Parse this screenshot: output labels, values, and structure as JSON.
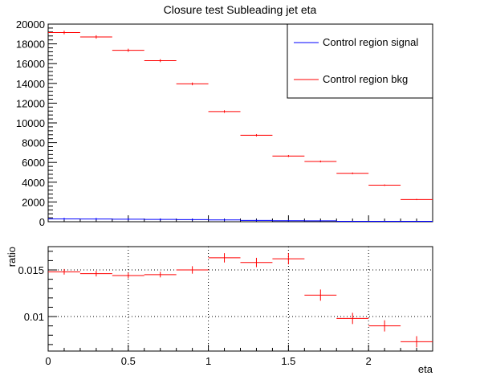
{
  "colors": {
    "signal": "#0000ff",
    "bkg": "#ff0000",
    "axis": "#000000"
  },
  "chart_data": [
    {
      "type": "scatter",
      "title": "Closure test Subleading jet eta",
      "xlim": [
        0,
        2.4
      ],
      "ylim": [
        0,
        20000
      ],
      "y_ticks": [
        0,
        2000,
        4000,
        6000,
        8000,
        10000,
        12000,
        14000,
        16000,
        18000,
        20000
      ],
      "y_tick_labels": [
        "0",
        "2000",
        "4000",
        "6000",
        "8000",
        "10000",
        "12000",
        "14000",
        "16000",
        "18000",
        "20000"
      ],
      "grid": false,
      "legend": {
        "position": "top-right",
        "entries": [
          "Control region signal",
          "Control region bkg"
        ]
      },
      "bin_width": 0.2,
      "series": [
        {
          "name": "Control region signal",
          "color": "#0000ff",
          "x": [
            0.1,
            0.3,
            0.5,
            0.7,
            0.9,
            1.1,
            1.3,
            1.5,
            1.7,
            1.9,
            2.1,
            2.3
          ],
          "values": [
            285,
            275,
            250,
            230,
            210,
            180,
            130,
            100,
            90,
            0,
            0,
            0
          ],
          "errors": [
            110,
            110,
            100,
            100,
            95,
            90,
            75,
            70,
            65,
            0,
            0,
            0
          ]
        },
        {
          "name": "Control region bkg",
          "color": "#ff0000",
          "x": [
            0.1,
            0.3,
            0.5,
            0.7,
            0.9,
            1.1,
            1.3,
            1.5,
            1.7,
            1.9,
            2.1,
            2.3
          ],
          "values": [
            19150,
            18700,
            17350,
            16300,
            13950,
            11150,
            8750,
            6650,
            6100,
            4900,
            3700,
            2250
          ],
          "errors": [
            180,
            170,
            160,
            150,
            140,
            130,
            115,
            100,
            95,
            85,
            75,
            60
          ]
        }
      ]
    },
    {
      "type": "scatter",
      "title": "",
      "xlabel": "eta",
      "ylabel": "ratio",
      "xlim": [
        0,
        2.4
      ],
      "ylim": [
        0.0063,
        0.0175
      ],
      "x_ticks": [
        0,
        0.5,
        1,
        1.5,
        2
      ],
      "x_tick_labels": [
        "0",
        "0.5",
        "1",
        "1.5",
        "2"
      ],
      "y_ticks": [
        0.01,
        0.015
      ],
      "y_tick_labels": [
        "0.01",
        "0.015"
      ],
      "grid": true,
      "bin_width": 0.2,
      "series": [
        {
          "color": "#ff0000",
          "x": [
            0.1,
            0.3,
            0.5,
            0.7,
            0.9,
            1.1,
            1.3,
            1.5,
            1.7,
            1.9,
            2.1,
            2.3
          ],
          "values": [
            0.0148,
            0.0146,
            0.0144,
            0.0145,
            0.015,
            0.0163,
            0.0158,
            0.0162,
            0.0123,
            0.0098,
            0.009,
            0.0073
          ],
          "errors": [
            0.0003,
            0.0003,
            0.0003,
            0.0003,
            0.0004,
            0.0005,
            0.0005,
            0.0006,
            0.0006,
            0.0006,
            0.0006,
            0.0006
          ]
        }
      ]
    }
  ]
}
